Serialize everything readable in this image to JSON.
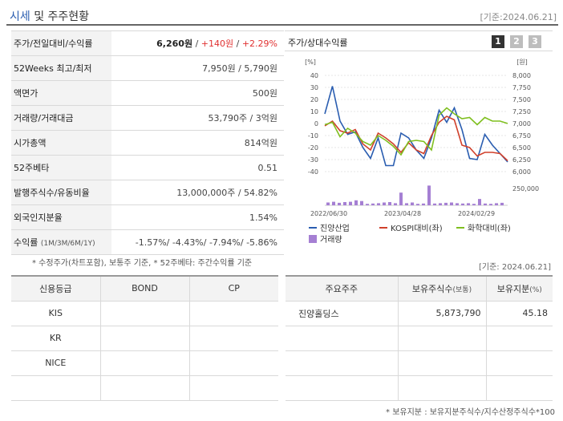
{
  "header": {
    "title_blue": "시세",
    "title_rest": " 및 주주현황",
    "date": "[기준:2024.06.21]"
  },
  "stats": {
    "rows": [
      {
        "label": "주가/전일대비/수익률",
        "price": "6,260원",
        "sep1": " / ",
        "change": "+140원",
        "sep2": " / ",
        "pct": "+2.29%"
      },
      {
        "label": "52Weeks 최고/최저",
        "value": "7,950원 / 5,790원"
      },
      {
        "label": "액면가",
        "value": "500원"
      },
      {
        "label": "거래량/거래대금",
        "value": "53,790주 / 3억원"
      },
      {
        "label": "시가총액",
        "value": "814억원"
      },
      {
        "label": "52주베타",
        "value": "0.51"
      },
      {
        "label": "발행주식수/유동비율",
        "value": "13,000,000주 / 54.82%"
      },
      {
        "label": "외국인지분율",
        "value": "1.54%"
      },
      {
        "label": "수익률",
        "sub": "(1M/3M/6M/1Y)",
        "value": "-1.57%/ -4.43%/ -7.94%/ -5.86%"
      }
    ],
    "note": "* 수정주가(차트포함), 보통주 기준, * 52주베타: 주간수익률 기준"
  },
  "chart_panel": {
    "title": "주가/상대수익률",
    "pages": [
      "1",
      "2",
      "3"
    ]
  },
  "chart_data": {
    "type": "line",
    "left_unit": "[%]",
    "right_unit": "[원]",
    "left_ticks": [
      "40",
      "30",
      "20",
      "10",
      "0",
      "-10",
      "-20",
      "-30",
      "-40"
    ],
    "right_ticks": [
      "8,000",
      "7,750",
      "7,500",
      "7,250",
      "7,000",
      "6,750",
      "6,500",
      "6,250",
      "6,000"
    ],
    "volume_tick": "250,000",
    "x_labels": [
      "2022/06/30",
      "2023/04/28",
      "2024/02/29"
    ],
    "ylim_left": [
      -40,
      40
    ],
    "series": [
      {
        "name": "진양산업",
        "color": "#2a5db0",
        "values": [
          8,
          31,
          2,
          -9,
          -7,
          -20,
          -29,
          -12,
          -35,
          -35,
          -8,
          -12,
          -22,
          -29,
          -12,
          11,
          1,
          13,
          -5,
          -29,
          -30,
          -9,
          -18,
          -25,
          -32
        ]
      },
      {
        "name": "KOSPI대비(좌)",
        "color": "#d0402b",
        "values": [
          -2,
          2,
          -6,
          -8,
          -5,
          -17,
          -22,
          -8,
          -12,
          -17,
          -24,
          -16,
          -22,
          -25,
          -10,
          1,
          6,
          3,
          -18,
          -20,
          -27,
          -24,
          -24,
          -25,
          -31
        ]
      },
      {
        "name": "화학대비(좌)",
        "color": "#7fbf1f",
        "values": [
          -1,
          1,
          -11,
          -4,
          -8,
          -15,
          -18,
          -10,
          -14,
          -19,
          -26,
          -15,
          -14,
          -15,
          -22,
          7,
          13,
          8,
          4,
          5,
          -1,
          5,
          2,
          2,
          0
        ]
      }
    ],
    "volume": {
      "name": "거래량",
      "color": "#a57fd3",
      "max": 250000,
      "values": [
        40000,
        50000,
        35000,
        45000,
        50000,
        70000,
        60000,
        20000,
        25000,
        30000,
        40000,
        45000,
        30000,
        180000,
        30000,
        40000,
        20000,
        25000,
        280000,
        25000,
        30000,
        35000,
        40000,
        30000,
        25000,
        30000,
        20000,
        90000,
        25000,
        20000,
        30000,
        35000
      ]
    }
  },
  "date2": "[기준: 2024.06.21]",
  "credit": {
    "headers": [
      "신용등급",
      "BOND",
      "CP"
    ],
    "rows": [
      "KIS",
      "KR",
      "NICE",
      ""
    ]
  },
  "holders": {
    "headers": {
      "name": "주요주주",
      "shares": "보유주식수",
      "shares_sub": "(보통)",
      "ratio": "보유지분",
      "ratio_sub": "(%)"
    },
    "rows": [
      {
        "name": "진양홀딩스",
        "shares": "5,873,790",
        "ratio": "45.18"
      }
    ],
    "note": "* 보유지분 : 보유지분주식수/지수산정주식수*100"
  }
}
